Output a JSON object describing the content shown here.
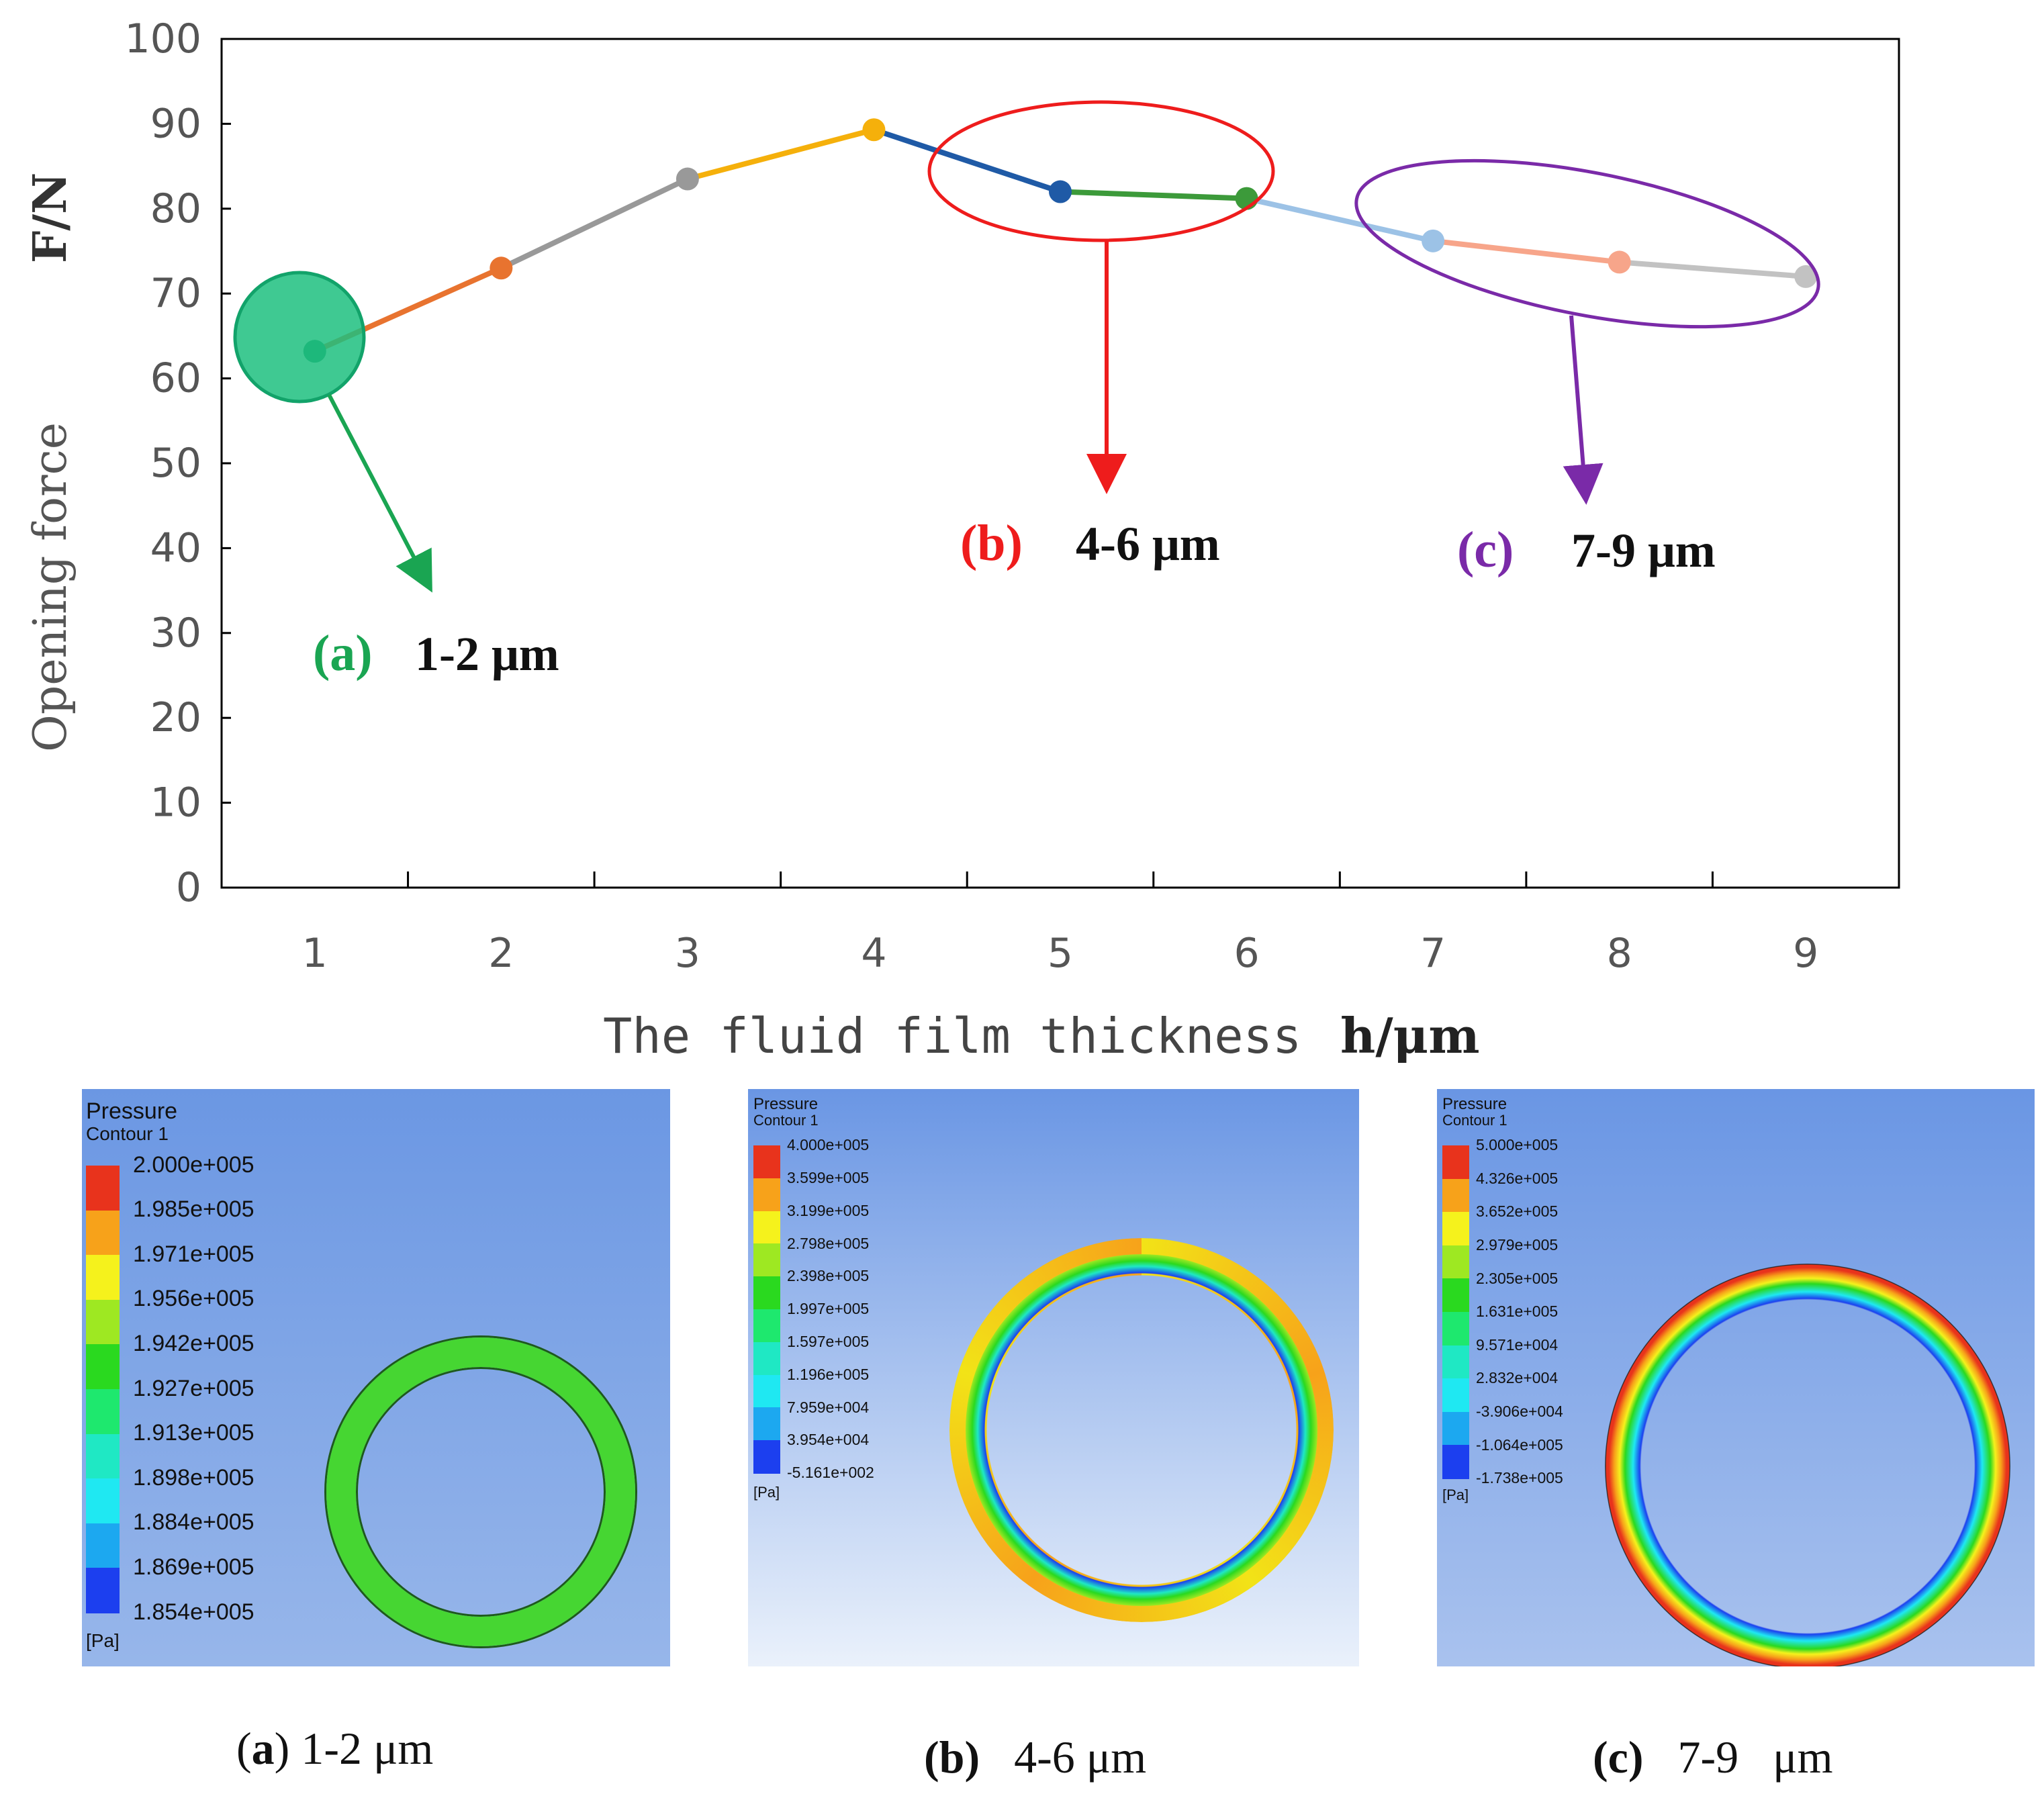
{
  "chart_data": {
    "type": "line",
    "x": [
      1,
      2,
      3,
      4,
      5,
      6,
      7,
      8,
      9
    ],
    "values": [
      63.2,
      73.0,
      83.5,
      89.3,
      82.0,
      81.2,
      76.2,
      73.7,
      72.0
    ],
    "segment_colors": [
      "#e8732f",
      "#999999",
      "#f5b00b",
      "#1f5aa6",
      "#3c9a3a",
      "#9cc2e6",
      "#f7a58a",
      "#c2c2c2"
    ],
    "point_colors": [
      "#1e8a66",
      "#e8732f",
      "#999999",
      "#f5b00b",
      "#1f5aa6",
      "#3c9a3a",
      "#9cc2e6",
      "#f7a58a",
      "#c2c2c2"
    ],
    "xlim": [
      0.5,
      9.5
    ],
    "ylim": [
      0,
      100
    ],
    "yticks": [
      0,
      10,
      20,
      30,
      40,
      50,
      60,
      70,
      80,
      90,
      100
    ],
    "xticks": [
      1,
      2,
      3,
      4,
      5,
      6,
      7,
      8,
      9
    ],
    "ylabel": "Opening force",
    "ylabel_unit": "F/N",
    "xlabel": "The fluid film thickness",
    "xlabel_unit": "h/μm",
    "annotations": [
      {
        "letter": "(a)",
        "range": "1-2 μm",
        "color": "#1aa552"
      },
      {
        "letter": "(b)",
        "range": "4-6 μm",
        "color": "#ee1c1c"
      },
      {
        "letter": "(c)",
        "range": "7-9 μm",
        "color": "#7a2aa8"
      }
    ]
  },
  "panels": [
    {
      "title_line1": "Pressure",
      "title_line2": "Contour 1",
      "unit": "[Pa]",
      "levels": [
        "2.000e+005",
        "1.985e+005",
        "1.971e+005",
        "1.956e+005",
        "1.942e+005",
        "1.927e+005",
        "1.913e+005",
        "1.898e+005",
        "1.884e+005",
        "1.869e+005",
        "1.854e+005"
      ]
    },
    {
      "title_line1": "Pressure",
      "title_line2": "Contour 1",
      "unit": "[Pa]",
      "levels": [
        "4.000e+005",
        "3.599e+005",
        "3.199e+005",
        "2.798e+005",
        "2.398e+005",
        "1.997e+005",
        "1.597e+005",
        "1.196e+005",
        "7.959e+004",
        "3.954e+004",
        "-5.161e+002"
      ]
    },
    {
      "title_line1": "Pressure",
      "title_line2": "Contour 1",
      "unit": "[Pa]",
      "levels": [
        "5.000e+005",
        "4.326e+005",
        "3.652e+005",
        "2.979e+005",
        "2.305e+005",
        "1.631e+005",
        "9.571e+004",
        "2.832e+004",
        "-3.906e+004",
        "-1.064e+005",
        "-1.738e+005"
      ]
    }
  ],
  "colorbar_colors": [
    "#e8331c",
    "#f7a21a",
    "#f5f21c",
    "#9ee822",
    "#2ad91f",
    "#1ee86e",
    "#1fe8c4",
    "#1fe8f2",
    "#1ca8f0",
    "#1c3fef"
  ],
  "captions": [
    {
      "letter": "a",
      "text": " 1-2 μm"
    },
    {
      "letter": "b",
      "text": "   4-6 μm"
    },
    {
      "letter": "c",
      "text": "   7-9   μm"
    }
  ]
}
